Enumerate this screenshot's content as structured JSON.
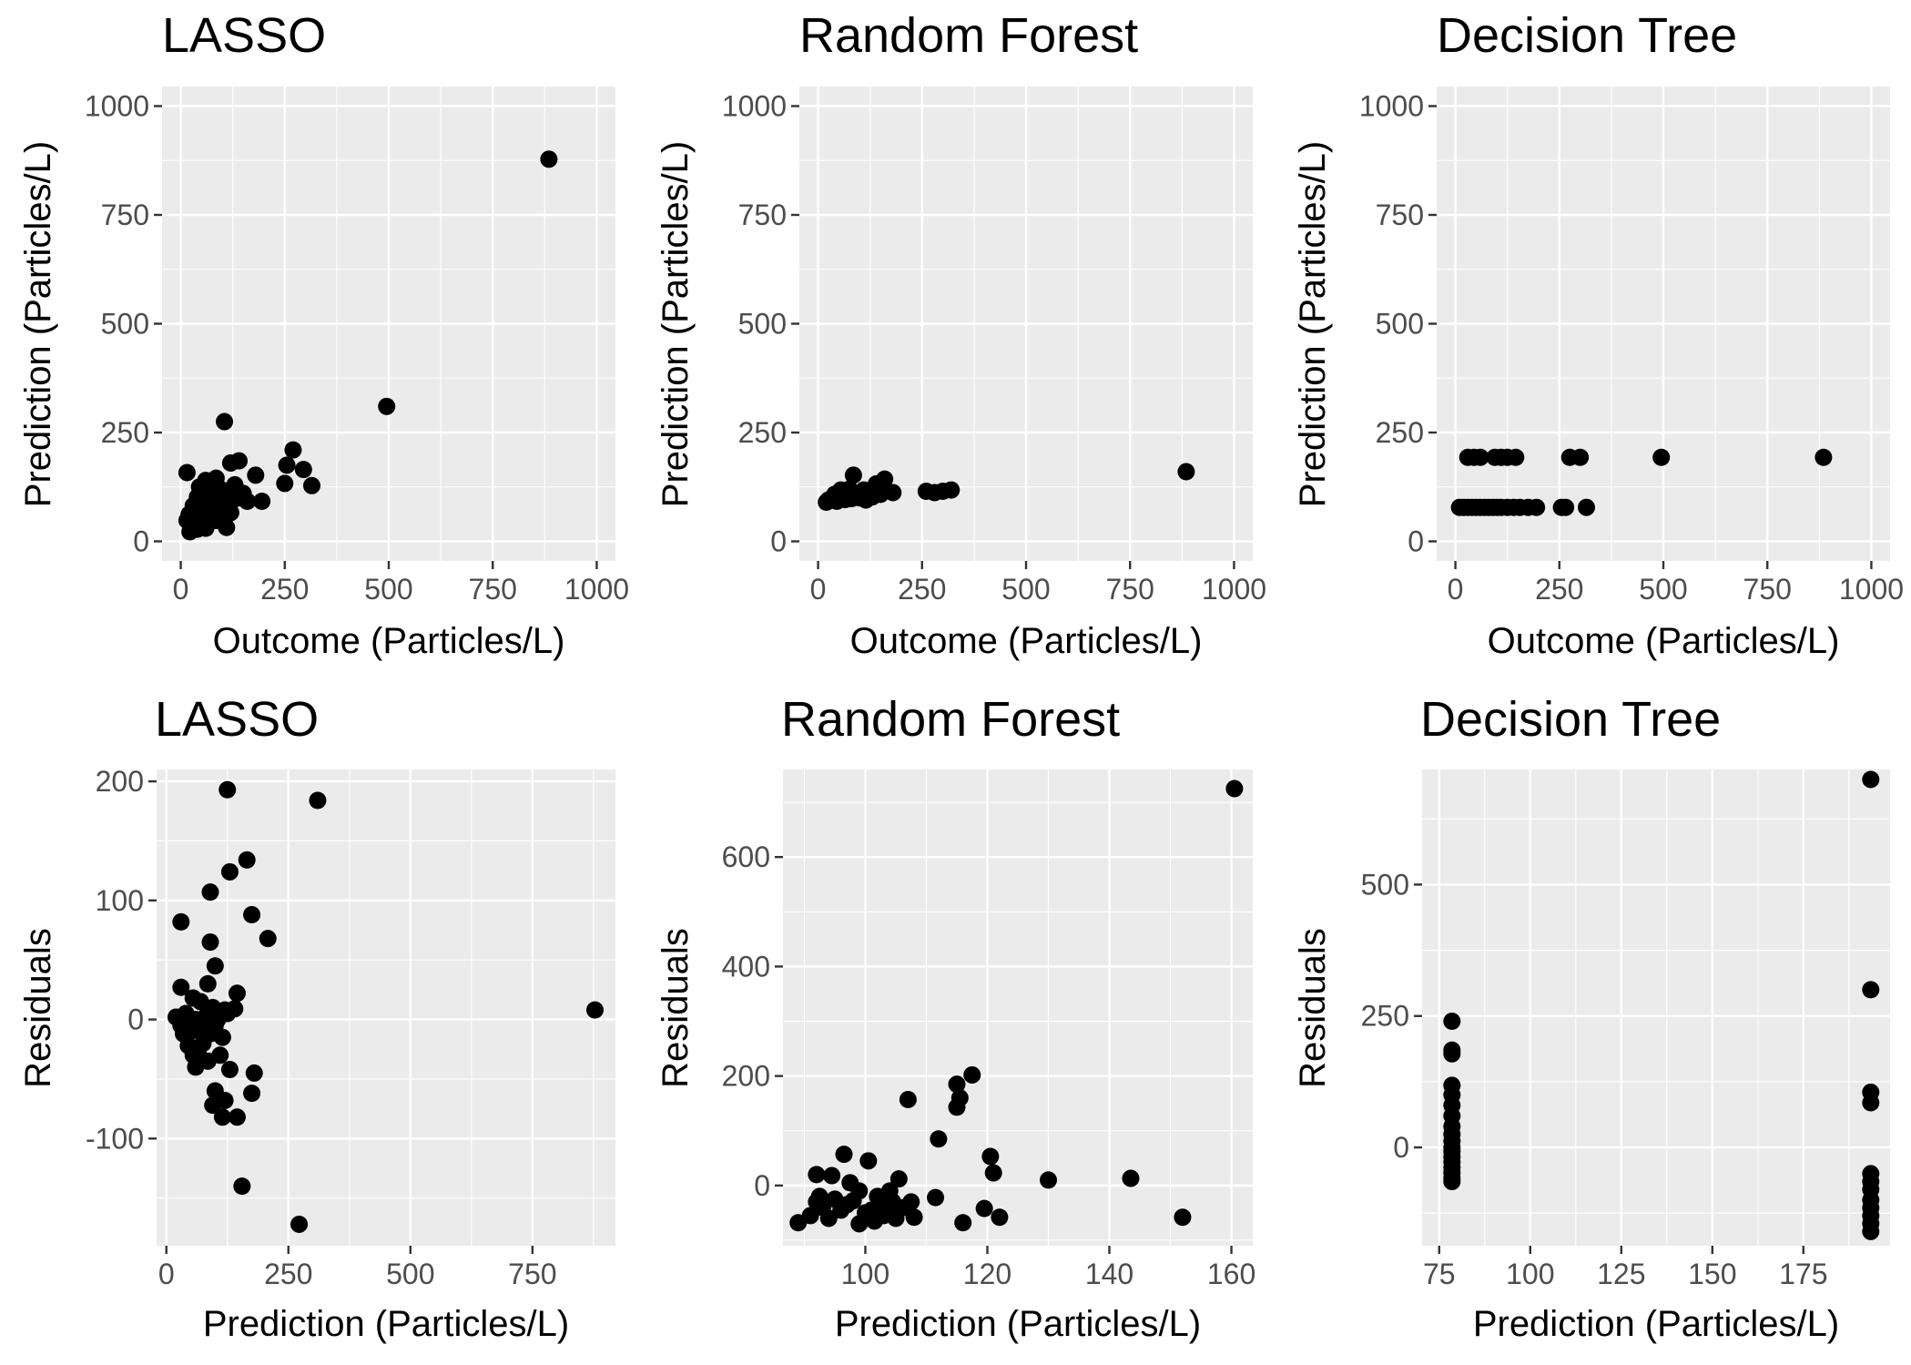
{
  "chart_data": [
    {
      "id": "p1",
      "type": "scatter",
      "title": "LASSO",
      "xlabel": "Outcome (Particles/L)",
      "ylabel": "Prediction (Particles/L)",
      "xlim": [
        -45,
        1045
      ],
      "ylim": [
        -45,
        1045
      ],
      "x_ticks": [
        0,
        250,
        500,
        750,
        1000
      ],
      "y_ticks": [
        0,
        250,
        500,
        750,
        1000
      ],
      "x_tick_labels": [
        "0",
        "250",
        "500",
        "750",
        "1000"
      ],
      "y_tick_labels": [
        "0",
        "250",
        "500",
        "750",
        "1000"
      ],
      "grid": true,
      "points": [
        [
          885,
          878
        ],
        [
          495,
          310
        ],
        [
          105,
          275
        ],
        [
          270,
          210
        ],
        [
          255,
          175
        ],
        [
          295,
          165
        ],
        [
          315,
          128
        ],
        [
          250,
          133
        ],
        [
          195,
          92
        ],
        [
          180,
          152
        ],
        [
          140,
          185
        ],
        [
          120,
          180
        ],
        [
          85,
          145
        ],
        [
          60,
          140
        ],
        [
          15,
          158
        ],
        [
          45,
          125
        ],
        [
          70,
          118
        ],
        [
          95,
          120
        ],
        [
          110,
          115
        ],
        [
          130,
          118
        ],
        [
          150,
          110
        ],
        [
          160,
          92
        ],
        [
          140,
          100
        ],
        [
          125,
          95
        ],
        [
          100,
          90
        ],
        [
          80,
          92
        ],
        [
          55,
          88
        ],
        [
          40,
          102
        ],
        [
          30,
          82
        ],
        [
          20,
          62
        ],
        [
          35,
          58
        ],
        [
          50,
          65
        ],
        [
          65,
          72
        ],
        [
          75,
          60
        ],
        [
          90,
          72
        ],
        [
          105,
          63
        ],
        [
          120,
          66
        ],
        [
          35,
          42
        ],
        [
          55,
          38
        ],
        [
          70,
          45
        ],
        [
          85,
          48
        ],
        [
          25,
          32
        ],
        [
          40,
          28
        ],
        [
          60,
          30
        ],
        [
          15,
          48
        ],
        [
          22,
          22
        ],
        [
          110,
          32
        ],
        [
          75,
          105
        ],
        [
          95,
          100
        ],
        [
          130,
          130
        ]
      ]
    },
    {
      "id": "p2",
      "type": "scatter",
      "title": "Random Forest",
      "xlabel": "Outcome (Particles/L)",
      "ylabel": "Prediction (Particles/L)",
      "xlim": [
        -45,
        1045
      ],
      "ylim": [
        -45,
        1045
      ],
      "x_ticks": [
        0,
        250,
        500,
        750,
        1000
      ],
      "y_ticks": [
        0,
        250,
        500,
        750,
        1000
      ],
      "x_tick_labels": [
        "0",
        "250",
        "500",
        "750",
        "1000"
      ],
      "y_tick_labels": [
        "0",
        "250",
        "500",
        "750",
        "1000"
      ],
      "grid": true,
      "points": [
        [
          885,
          160
        ],
        [
          85,
          152
        ],
        [
          160,
          143
        ],
        [
          140,
          132
        ],
        [
          75,
          120
        ],
        [
          55,
          118
        ],
        [
          110,
          118
        ],
        [
          180,
          112
        ],
        [
          150,
          108
        ],
        [
          130,
          102
        ],
        [
          100,
          100
        ],
        [
          40,
          108
        ],
        [
          60,
          100
        ],
        [
          80,
          98
        ],
        [
          25,
          95
        ],
        [
          35,
          98
        ],
        [
          45,
          92
        ],
        [
          65,
          96
        ],
        [
          90,
          102
        ],
        [
          115,
          95
        ],
        [
          260,
          115
        ],
        [
          280,
          112
        ],
        [
          300,
          115
        ],
        [
          320,
          118
        ],
        [
          120,
          110
        ],
        [
          20,
          90
        ],
        [
          70,
          105
        ],
        [
          95,
          110
        ],
        [
          50,
          112
        ],
        [
          105,
          108
        ]
      ]
    },
    {
      "id": "p3",
      "type": "scatter",
      "title": "Decision Tree",
      "xlabel": "Outcome (Particles/L)",
      "ylabel": "Prediction (Particles/L)",
      "xlim": [
        -45,
        1045
      ],
      "ylim": [
        -45,
        1045
      ],
      "x_ticks": [
        0,
        250,
        500,
        750,
        1000
      ],
      "y_ticks": [
        0,
        250,
        500,
        750,
        1000
      ],
      "x_tick_labels": [
        "0",
        "250",
        "500",
        "750",
        "1000"
      ],
      "y_tick_labels": [
        "0",
        "250",
        "500",
        "750",
        "1000"
      ],
      "grid": true,
      "points": [
        [
          30,
          193
        ],
        [
          45,
          193
        ],
        [
          60,
          193
        ],
        [
          95,
          193
        ],
        [
          110,
          193
        ],
        [
          125,
          193
        ],
        [
          145,
          193
        ],
        [
          275,
          193
        ],
        [
          300,
          193
        ],
        [
          495,
          193
        ],
        [
          885,
          193
        ],
        [
          10,
          78
        ],
        [
          20,
          78
        ],
        [
          30,
          78
        ],
        [
          40,
          78
        ],
        [
          50,
          78
        ],
        [
          60,
          78
        ],
        [
          70,
          78
        ],
        [
          80,
          78
        ],
        [
          90,
          78
        ],
        [
          100,
          78
        ],
        [
          110,
          78
        ],
        [
          125,
          78
        ],
        [
          140,
          78
        ],
        [
          155,
          78
        ],
        [
          175,
          78
        ],
        [
          195,
          78
        ],
        [
          255,
          78
        ],
        [
          265,
          78
        ],
        [
          315,
          78
        ]
      ]
    },
    {
      "id": "p4",
      "type": "scatter",
      "title": "LASSO",
      "xlabel": "Prediction (Particles/L)",
      "ylabel": "Residuals",
      "xlim": [
        -20,
        920
      ],
      "ylim": [
        -190,
        210
      ],
      "x_ticks": [
        0,
        250,
        500,
        750
      ],
      "y_ticks": [
        -100,
        0,
        100,
        200
      ],
      "x_tick_labels": [
        "0",
        "250",
        "500",
        "750"
      ],
      "y_tick_labels": [
        "-100",
        "0",
        "100",
        "200"
      ],
      "grid": true,
      "points": [
        [
          125,
          193
        ],
        [
          310,
          184
        ],
        [
          878,
          8
        ],
        [
          165,
          134
        ],
        [
          130,
          124
        ],
        [
          90,
          107
        ],
        [
          175,
          88
        ],
        [
          208,
          68
        ],
        [
          90,
          65
        ],
        [
          30,
          82
        ],
        [
          100,
          45
        ],
        [
          30,
          27
        ],
        [
          85,
          30
        ],
        [
          145,
          22
        ],
        [
          55,
          18
        ],
        [
          70,
          15
        ],
        [
          95,
          10
        ],
        [
          125,
          5
        ],
        [
          140,
          9
        ],
        [
          20,
          2
        ],
        [
          40,
          5
        ],
        [
          60,
          0
        ],
        [
          80,
          2
        ],
        [
          105,
          0
        ],
        [
          30,
          -5
        ],
        [
          50,
          -10
        ],
        [
          70,
          -8
        ],
        [
          90,
          -12
        ],
        [
          115,
          -15
        ],
        [
          45,
          -22
        ],
        [
          65,
          -28
        ],
        [
          85,
          -35
        ],
        [
          110,
          -30
        ],
        [
          60,
          -40
        ],
        [
          130,
          -42
        ],
        [
          180,
          -45
        ],
        [
          100,
          -60
        ],
        [
          175,
          -62
        ],
        [
          95,
          -72
        ],
        [
          120,
          -68
        ],
        [
          145,
          -82
        ],
        [
          115,
          -82
        ],
        [
          155,
          -140
        ],
        [
          272,
          -172
        ],
        [
          35,
          -12
        ],
        [
          75,
          -20
        ],
        [
          55,
          -30
        ],
        [
          100,
          -5
        ],
        [
          120,
          8
        ]
      ]
    },
    {
      "id": "p5",
      "type": "scatter",
      "title": "Random Forest",
      "xlabel": "Prediction (Particles/L)",
      "ylabel": "Residuals",
      "xlim": [
        86.5,
        163.5
      ],
      "ylim": [
        -110,
        760
      ],
      "x_ticks": [
        100,
        120,
        140,
        160
      ],
      "y_ticks": [
        0,
        200,
        400,
        600
      ],
      "x_tick_labels": [
        "100",
        "120",
        "140",
        "160"
      ],
      "y_tick_labels": [
        "0",
        "200",
        "400",
        "600"
      ],
      "grid": true,
      "points": [
        [
          160.5,
          725
        ],
        [
          117.5,
          202
        ],
        [
          115,
          185
        ],
        [
          115.5,
          160
        ],
        [
          115,
          143
        ],
        [
          107,
          157
        ],
        [
          112,
          85
        ],
        [
          120.5,
          53
        ],
        [
          121,
          23
        ],
        [
          130,
          10
        ],
        [
          143.5,
          13
        ],
        [
          96.5,
          57
        ],
        [
          100.5,
          45
        ],
        [
          105.5,
          12
        ],
        [
          104,
          -10
        ],
        [
          111.5,
          -22
        ],
        [
          119.5,
          -42
        ],
        [
          122,
          -58
        ],
        [
          116,
          -68
        ],
        [
          108,
          -58
        ],
        [
          152,
          -58
        ],
        [
          92,
          20
        ],
        [
          94.5,
          18
        ],
        [
          97.5,
          5
        ],
        [
          99,
          -10
        ],
        [
          102,
          -20
        ],
        [
          104.5,
          -30
        ],
        [
          106.5,
          -40
        ],
        [
          95,
          -25
        ],
        [
          97,
          -35
        ],
        [
          100,
          -50
        ],
        [
          101.5,
          -65
        ],
        [
          103,
          -55
        ],
        [
          99,
          -70
        ],
        [
          93,
          -40
        ],
        [
          94,
          -60
        ],
        [
          91,
          -55
        ],
        [
          89,
          -68
        ],
        [
          92.5,
          -20
        ],
        [
          96,
          -45
        ],
        [
          98,
          -28
        ],
        [
          101,
          -45
        ],
        [
          103.5,
          -38
        ],
        [
          105,
          -60
        ],
        [
          107.5,
          -30
        ],
        [
          92,
          -30
        ]
      ]
    },
    {
      "id": "p6",
      "type": "scatter",
      "title": "Decision Tree",
      "xlabel": "Prediction (Particles/L)",
      "ylabel": "Residuals",
      "xlim": [
        70.3,
        198.8
      ],
      "ylim": [
        -187,
        719
      ],
      "x_ticks": [
        75,
        100,
        125,
        150,
        175
      ],
      "y_ticks": [
        0,
        250,
        500
      ],
      "x_tick_labels": [
        "75",
        "100",
        "125",
        "150",
        "175"
      ],
      "y_tick_labels": [
        "0",
        "250",
        "500"
      ],
      "grid": true,
      "points": [
        [
          193.5,
          700
        ],
        [
          193.5,
          300
        ],
        [
          193.5,
          105
        ],
        [
          193.5,
          85
        ],
        [
          193.5,
          -50
        ],
        [
          193.5,
          -65
        ],
        [
          193.5,
          -80
        ],
        [
          193.5,
          -100
        ],
        [
          193.5,
          -115
        ],
        [
          193.5,
          -130
        ],
        [
          193.5,
          -145
        ],
        [
          193.5,
          -160
        ],
        [
          78.5,
          240
        ],
        [
          78.5,
          185
        ],
        [
          78.5,
          178
        ],
        [
          78.5,
          118
        ],
        [
          78.5,
          100
        ],
        [
          78.5,
          80
        ],
        [
          78.5,
          60
        ],
        [
          78.5,
          40
        ],
        [
          78.5,
          25
        ],
        [
          78.5,
          12
        ],
        [
          78.5,
          0
        ],
        [
          78.5,
          -8
        ],
        [
          78.5,
          -18
        ],
        [
          78.5,
          -28
        ],
        [
          78.5,
          -38
        ],
        [
          78.5,
          -48
        ],
        [
          78.5,
          -58
        ],
        [
          78.5,
          -65
        ]
      ]
    }
  ]
}
